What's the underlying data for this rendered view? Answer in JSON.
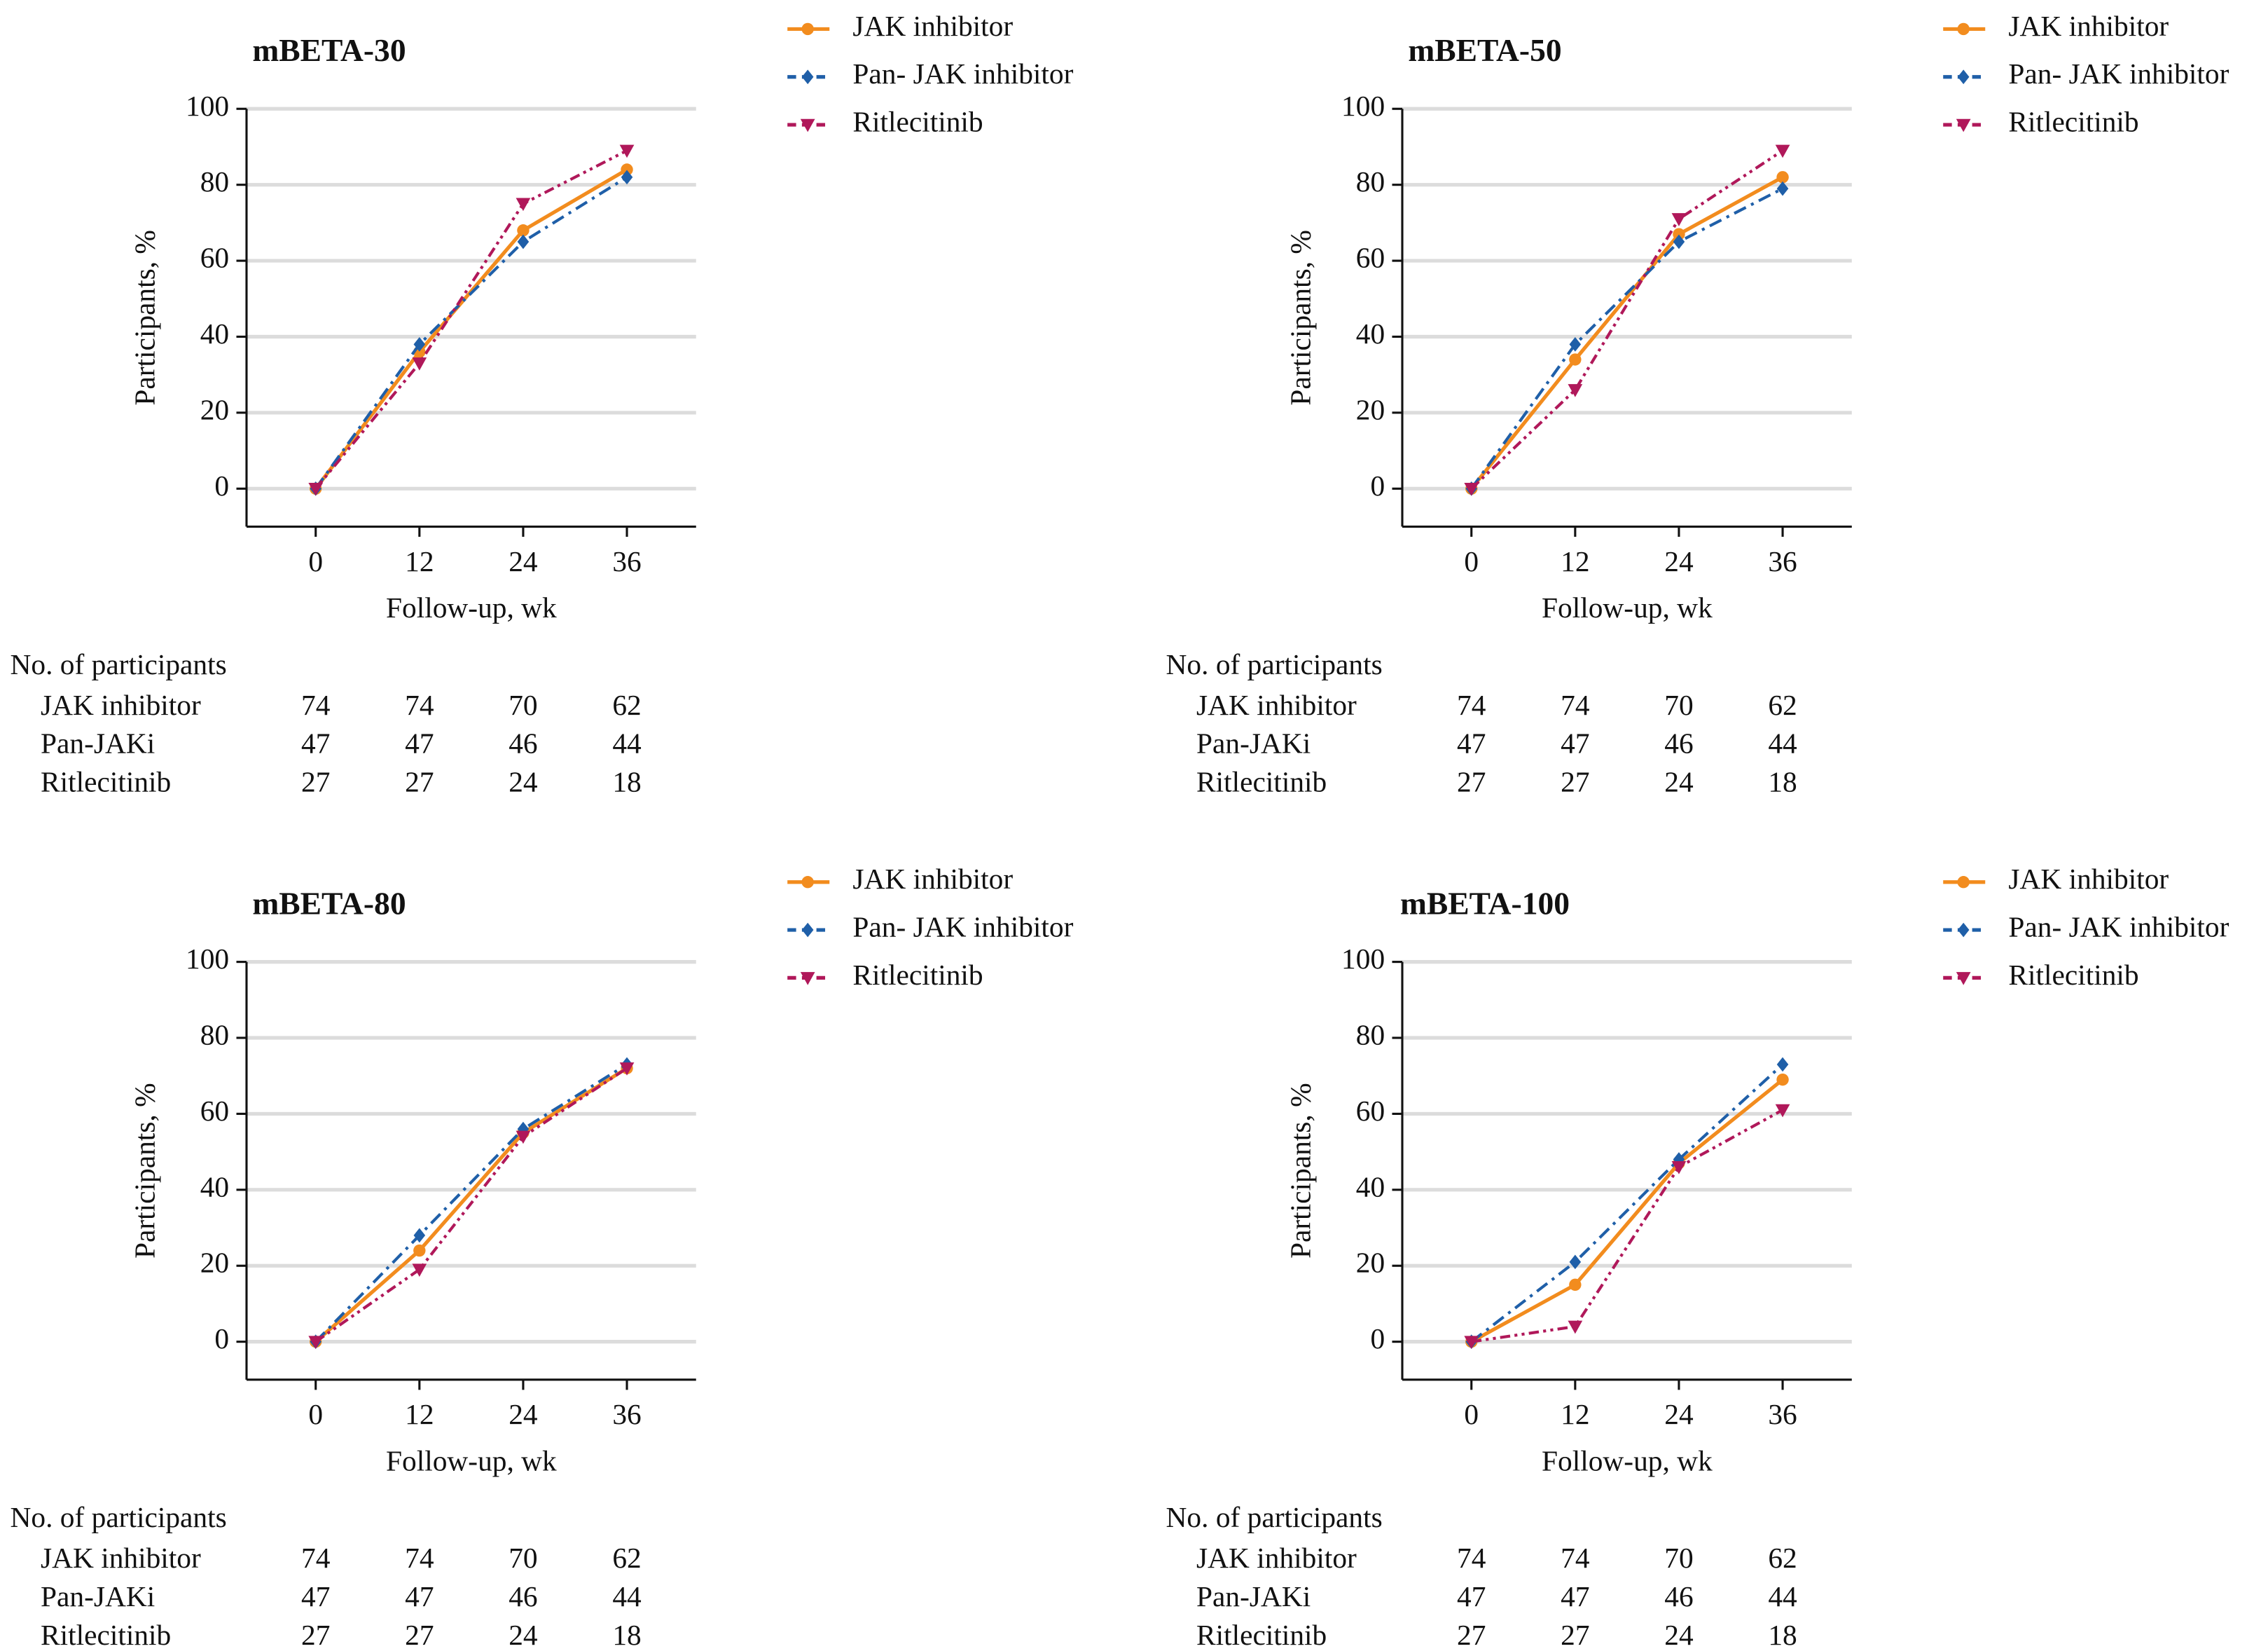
{
  "chart_data": [
    {
      "type": "line",
      "title": "mBETA-30",
      "x": [
        0,
        12,
        24,
        36
      ],
      "series": [
        {
          "name": "JAK inhibitor",
          "color": "#f28c1e",
          "marker": "circle",
          "dash": "solid",
          "values": [
            0,
            36,
            68,
            84
          ]
        },
        {
          "name": "Pan- JAK inhibitor",
          "color": "#1f5fa8",
          "marker": "diamond",
          "dash": "dash-dot",
          "values": [
            0,
            38,
            65,
            82
          ]
        },
        {
          "name": "Ritlecitinib",
          "color": "#b0185a",
          "marker": "triangle-down",
          "dash": "dash-dot-dot",
          "values": [
            0,
            33,
            75,
            89
          ]
        }
      ],
      "xlim": [
        -8,
        44
      ],
      "ylim": [
        -10,
        100
      ],
      "xticks": [
        0,
        12,
        24,
        36
      ],
      "yticks": [
        0,
        20,
        40,
        60,
        80,
        100
      ],
      "xlabel": "Follow-up, wk",
      "ylabel": "Participants, %",
      "grid": true,
      "legend": "outside right",
      "participants": {
        "title": "No. of participants",
        "rows": [
          {
            "label": "JAK inhibitor",
            "values": [
              74,
              74,
              70,
              62
            ]
          },
          {
            "label": "Pan-JAKi",
            "values": [
              47,
              47,
              46,
              44
            ]
          },
          {
            "label": "Ritlecitinib",
            "values": [
              27,
              27,
              24,
              18
            ]
          }
        ]
      }
    },
    {
      "type": "line",
      "title": "mBETA-50",
      "x": [
        0,
        12,
        24,
        36
      ],
      "series": [
        {
          "name": "JAK inhibitor",
          "color": "#f28c1e",
          "marker": "circle",
          "dash": "solid",
          "values": [
            0,
            34,
            67,
            82
          ]
        },
        {
          "name": "Pan- JAK inhibitor",
          "color": "#1f5fa8",
          "marker": "diamond",
          "dash": "dash-dot",
          "values": [
            0,
            38,
            65,
            79
          ]
        },
        {
          "name": "Ritlecitinib",
          "color": "#b0185a",
          "marker": "triangle-down",
          "dash": "dash-dot-dot",
          "values": [
            0,
            26,
            71,
            89
          ]
        }
      ],
      "xlim": [
        -8,
        44
      ],
      "ylim": [
        -10,
        100
      ],
      "xticks": [
        0,
        12,
        24,
        36
      ],
      "yticks": [
        0,
        20,
        40,
        60,
        80,
        100
      ],
      "xlabel": "Follow-up, wk",
      "ylabel": "Participants, %",
      "grid": true,
      "legend": "outside right",
      "participants": {
        "title": "No. of participants",
        "rows": [
          {
            "label": "JAK inhibitor",
            "values": [
              74,
              74,
              70,
              62
            ]
          },
          {
            "label": "Pan-JAKi",
            "values": [
              47,
              47,
              46,
              44
            ]
          },
          {
            "label": "Ritlecitinib",
            "values": [
              27,
              27,
              24,
              18
            ]
          }
        ]
      }
    },
    {
      "type": "line",
      "title": "mBETA-80",
      "x": [
        0,
        12,
        24,
        36
      ],
      "series": [
        {
          "name": "JAK inhibitor",
          "color": "#f28c1e",
          "marker": "circle",
          "dash": "solid",
          "values": [
            0,
            24,
            55,
            72
          ]
        },
        {
          "name": "Pan- JAK inhibitor",
          "color": "#1f5fa8",
          "marker": "diamond",
          "dash": "dash-dot",
          "values": [
            0,
            28,
            56,
            73
          ]
        },
        {
          "name": "Ritlecitinib",
          "color": "#b0185a",
          "marker": "triangle-down",
          "dash": "dash-dot-dot",
          "values": [
            0,
            19,
            54,
            72
          ]
        }
      ],
      "xlim": [
        -8,
        44
      ],
      "ylim": [
        -10,
        100
      ],
      "xticks": [
        0,
        12,
        24,
        36
      ],
      "yticks": [
        0,
        20,
        40,
        60,
        80,
        100
      ],
      "xlabel": "Follow-up, wk",
      "ylabel": "Participants, %",
      "grid": true,
      "legend": "outside right",
      "participants": {
        "title": "No. of participants",
        "rows": [
          {
            "label": "JAK inhibitor",
            "values": [
              74,
              74,
              70,
              62
            ]
          },
          {
            "label": "Pan-JAKi",
            "values": [
              47,
              47,
              46,
              44
            ]
          },
          {
            "label": "Ritlecitinib",
            "values": [
              27,
              27,
              24,
              18
            ]
          }
        ]
      }
    },
    {
      "type": "line",
      "title": "mBETA-100",
      "x": [
        0,
        12,
        24,
        36
      ],
      "series": [
        {
          "name": "JAK inhibitor",
          "color": "#f28c1e",
          "marker": "circle",
          "dash": "solid",
          "values": [
            0,
            15,
            47,
            69
          ]
        },
        {
          "name": "Pan- JAK inhibitor",
          "color": "#1f5fa8",
          "marker": "diamond",
          "dash": "dash-dot",
          "values": [
            0,
            21,
            48,
            73
          ]
        },
        {
          "name": "Ritlecitinib",
          "color": "#b0185a",
          "marker": "triangle-down",
          "dash": "dash-dot-dot",
          "values": [
            0,
            4,
            46,
            61
          ]
        }
      ],
      "xlim": [
        -8,
        44
      ],
      "ylim": [
        -10,
        100
      ],
      "xticks": [
        0,
        12,
        24,
        36
      ],
      "yticks": [
        0,
        20,
        40,
        60,
        80,
        100
      ],
      "xlabel": "Follow-up, wk",
      "ylabel": "Participants, %",
      "grid": true,
      "legend": "outside right",
      "participants": {
        "title": "No. of participants",
        "rows": [
          {
            "label": "JAK inhibitor",
            "values": [
              74,
              74,
              70,
              62
            ]
          },
          {
            "label": "Pan-JAKi",
            "values": [
              47,
              47,
              46,
              44
            ]
          },
          {
            "label": "Ritlecitinib",
            "values": [
              27,
              27,
              24,
              18
            ]
          }
        ]
      }
    }
  ]
}
